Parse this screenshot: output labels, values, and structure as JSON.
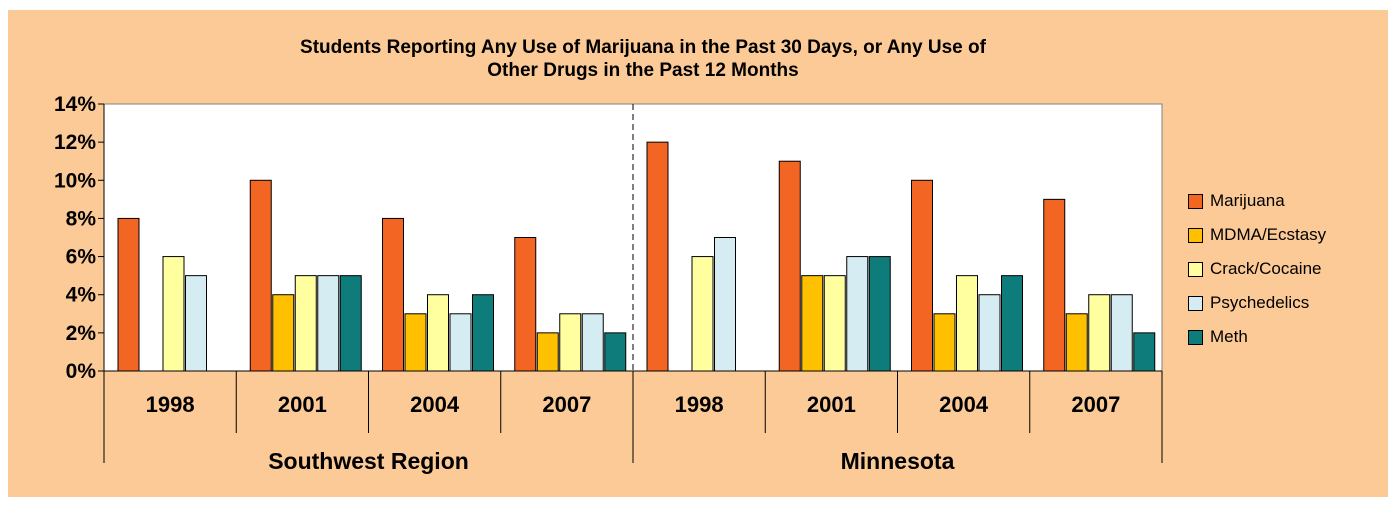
{
  "chart_data": {
    "type": "bar",
    "title": "Students Reporting Any Use of Marijuana in the Past 30 Days, or Any Use of Other Drugs in the Past 12 Months",
    "title_lines": [
      "Students Reporting Any Use of Marijuana in the Past 30 Days, or Any Use of",
      "Other Drugs in the Past 12 Months"
    ],
    "groups": [
      {
        "name": "Southwest Region",
        "categories": [
          "1998",
          "2001",
          "2004",
          "2007"
        ]
      },
      {
        "name": "Minnesota",
        "categories": [
          "1998",
          "2001",
          "2004",
          "2007"
        ]
      }
    ],
    "y_ticks": [
      "0%",
      "2%",
      "4%",
      "6%",
      "8%",
      "10%",
      "12%",
      "14%"
    ],
    "ylim": [
      0,
      14
    ],
    "y_unit": "%",
    "legend_position": "right",
    "grid": false,
    "series": [
      {
        "name": "Marijuana",
        "color": "#f26522",
        "values": [
          8,
          10,
          8,
          7,
          12,
          11,
          10,
          9
        ]
      },
      {
        "name": "MDMA/Ecstasy",
        "color": "#ffc000",
        "values": [
          null,
          4,
          3,
          2,
          null,
          5,
          3,
          3
        ]
      },
      {
        "name": "Crack/Cocaine",
        "color": "#ffffa0",
        "values": [
          6,
          5,
          4,
          3,
          6,
          5,
          5,
          4
        ]
      },
      {
        "name": "Psychedelics",
        "color": "#d6ecf3",
        "values": [
          5,
          5,
          3,
          3,
          7,
          6,
          4,
          4
        ]
      },
      {
        "name": "Meth",
        "color": "#0e7c7b",
        "values": [
          null,
          5,
          4,
          2,
          null,
          6,
          5,
          2
        ]
      }
    ]
  }
}
